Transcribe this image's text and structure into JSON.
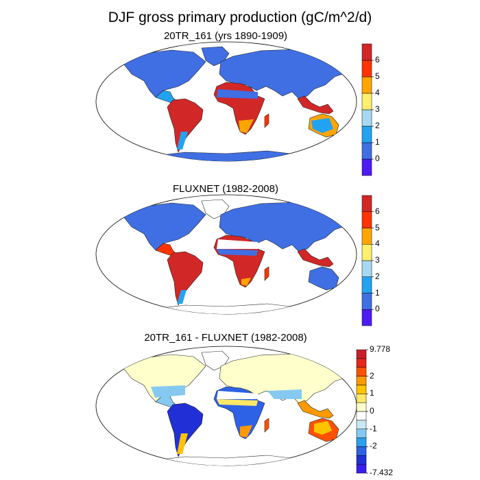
{
  "title": "DJF gross primary production (gC/m^2/d)",
  "panels": [
    {
      "title": "20TR_161 (yrs 1890-1909)",
      "colorbar_ticks": [
        "0",
        "1",
        "2",
        "3",
        "4",
        "5",
        "6"
      ]
    },
    {
      "title": "FLUXNET (1982-2008)",
      "colorbar_ticks": [
        "0",
        "1",
        "2",
        "3",
        "4",
        "5",
        "6"
      ]
    },
    {
      "title": "20TR_161 - FLUXNET (1982-2008)",
      "colorbar_ticks": [
        "9.778",
        "2",
        "1",
        "0",
        "-1",
        "-2",
        "-7.432"
      ]
    }
  ],
  "colors": {
    "gpp_scale": [
      "#4d1cf2",
      "#3f6fe3",
      "#22a3f2",
      "#a6d8f2",
      "#ffef6e",
      "#ffa500",
      "#ff3300",
      "#d22727"
    ],
    "diff_scale": [
      "#3b1df0",
      "#2130d6",
      "#2e62e6",
      "#2aa0f0",
      "#85c9f0",
      "#c9e8f5",
      "#ffffff",
      "#ffffcc",
      "#ffe866",
      "#ffc300",
      "#ff9900",
      "#ff5200",
      "#e8261c",
      "#c8202a"
    ]
  }
}
